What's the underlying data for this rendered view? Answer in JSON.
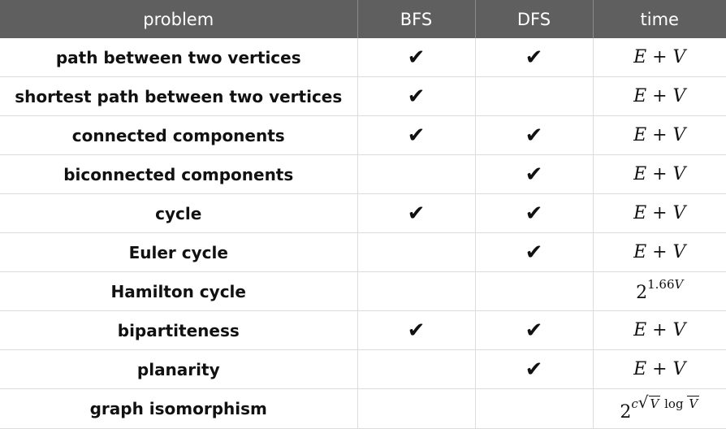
{
  "headers": {
    "problem": "problem",
    "bfs": "BFS",
    "dfs": "DFS",
    "time": "time"
  },
  "check_glyph": "✔",
  "rows": [
    {
      "problem": "path between two vertices",
      "bfs": true,
      "dfs": true,
      "time": "E + V"
    },
    {
      "problem": "shortest path between two vertices",
      "bfs": true,
      "dfs": false,
      "time": "E + V"
    },
    {
      "problem": "connected components",
      "bfs": true,
      "dfs": true,
      "time": "E + V"
    },
    {
      "problem": "biconnected components",
      "bfs": false,
      "dfs": true,
      "time": "E + V"
    },
    {
      "problem": "cycle",
      "bfs": true,
      "dfs": true,
      "time": "E + V"
    },
    {
      "problem": "Euler cycle",
      "bfs": false,
      "dfs": true,
      "time": "E + V"
    },
    {
      "problem": "Hamilton cycle",
      "bfs": false,
      "dfs": false,
      "time": "2^1.66V"
    },
    {
      "problem": "bipartiteness",
      "bfs": true,
      "dfs": true,
      "time": "E + V"
    },
    {
      "problem": "planarity",
      "bfs": false,
      "dfs": true,
      "time": "E + V"
    },
    {
      "problem": "graph isomorphism",
      "bfs": false,
      "dfs": false,
      "time": "2^c√(V log V)"
    }
  ]
}
